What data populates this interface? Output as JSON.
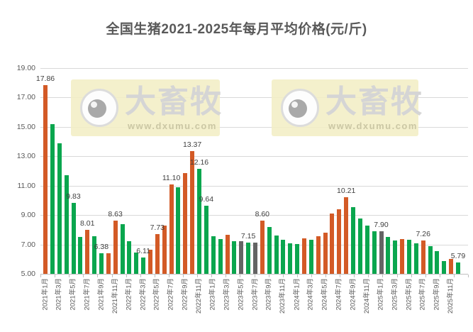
{
  "title": "全国生猪2021-2025年每月平均价格(元/斤)",
  "watermark": {
    "brand": "大畜牧",
    "url": "www.dxumu.com"
  },
  "colors": {
    "up": "#d35a26",
    "down": "#0aa64e",
    "flat": "#646464",
    "title_text": "#595959",
    "axis_text": "#595959",
    "gridline": "#d9d9d9",
    "axis_line": "#bfbfbf",
    "data_label_text": "#3f3f3f",
    "watermark_bg": "#f2eec5"
  },
  "chart_data": {
    "type": "bar",
    "title": "全国生猪2021-2025年每月平均价格(元/斤)",
    "xlabel": "",
    "ylabel": "",
    "unit": "元/斤",
    "ylim": [
      5,
      19
    ],
    "ytick_step": 2,
    "grid": true,
    "legend": false,
    "yticks": [
      "19.00",
      "17.00",
      "15.00",
      "13.00",
      "11.00",
      "9.00",
      "7.00",
      "5.00"
    ],
    "x_tick_labels": [
      "2021年1月",
      "2021年3月",
      "2021年5月",
      "2021年7月",
      "2021年9月",
      "2021年11月",
      "2022年1月",
      "2022年3月",
      "2022年5月",
      "2022年7月",
      "2022年9月",
      "2022年11月",
      "2023年1月",
      "2023年3月",
      "2023年5月",
      "2023年7月",
      "2023年9月",
      "2023年11月",
      "2024年1月",
      "2024年3月",
      "2024年5月",
      "2024年7月",
      "2024年9月",
      "2024年11月",
      "2025年1月",
      "2025年3月",
      "2025年5月",
      "2025年7月",
      "2025年9月",
      "2025年11月"
    ],
    "categories": [
      "2021年1月",
      "2021年2月",
      "2021年3月",
      "2021年4月",
      "2021年5月",
      "2021年6月",
      "2021年7月",
      "2021年8月",
      "2021年9月",
      "2021年10月",
      "2021年11月",
      "2021年12月",
      "2022年1月",
      "2022年2月",
      "2022年3月",
      "2022年4月",
      "2022年5月",
      "2022年6月",
      "2022年7月",
      "2022年8月",
      "2022年9月",
      "2022年10月",
      "2022年11月",
      "2022年12月",
      "2023年1月",
      "2023年2月",
      "2023年3月",
      "2023年4月",
      "2023年5月",
      "2023年6月",
      "2023年7月",
      "2023年8月",
      "2023年9月",
      "2023年10月",
      "2023年11月",
      "2023年12月",
      "2024年1月",
      "2024年2月",
      "2024年3月",
      "2024年4月",
      "2024年5月",
      "2024年6月",
      "2024年7月",
      "2024年8月",
      "2024年9月",
      "2024年10月",
      "2024年11月",
      "2024年12月",
      "2025年1月",
      "2025年2月",
      "2025年3月",
      "2025年4月",
      "2025年5月",
      "2025年6月",
      "2025年7月",
      "2025年8月",
      "2025年9月",
      "2025年10月",
      "2025年11月",
      "2025年12月"
    ],
    "values": [
      17.86,
      15.2,
      13.9,
      11.7,
      9.83,
      7.5,
      8.01,
      7.55,
      6.38,
      6.4,
      8.63,
      8.4,
      7.2,
      6.45,
      6.11,
      6.65,
      7.73,
      8.3,
      11.1,
      10.9,
      11.85,
      13.37,
      12.16,
      9.64,
      7.55,
      7.35,
      7.65,
      7.2,
      7.2,
      7.15,
      7.15,
      8.6,
      8.2,
      7.6,
      7.3,
      7.1,
      7.05,
      7.4,
      7.3,
      7.55,
      7.8,
      9.1,
      9.4,
      10.21,
      9.55,
      8.75,
      8.3,
      7.9,
      7.9,
      7.5,
      7.25,
      7.35,
      7.3,
      7.1,
      7.26,
      6.9,
      6.55,
      5.85,
      6.0,
      5.79
    ],
    "trends": [
      "up",
      "down",
      "down",
      "down",
      "down",
      "down",
      "up",
      "down",
      "down",
      "up",
      "up",
      "down",
      "down",
      "down",
      "down",
      "up",
      "up",
      "up",
      "up",
      "down",
      "up",
      "up",
      "down",
      "down",
      "down",
      "down",
      "up",
      "down",
      "flat",
      "down",
      "flat",
      "up",
      "down",
      "down",
      "down",
      "down",
      "down",
      "up",
      "down",
      "up",
      "up",
      "up",
      "up",
      "up",
      "down",
      "down",
      "down",
      "down",
      "flat",
      "down",
      "down",
      "up",
      "down",
      "down",
      "up",
      "down",
      "down",
      "down",
      "up",
      "down"
    ],
    "data_labels": {
      "0": "17.86",
      "4": "9.83",
      "6": "8.01",
      "8": "6.38",
      "10": "8.63",
      "14": "6.11",
      "16": "7.73",
      "18": "11.10",
      "21": "13.37",
      "22": "12.16",
      "23": "9.64",
      "29": "7.15",
      "31": "8.60",
      "43": "10.21",
      "48": "7.90",
      "54": "7.26",
      "59": "5.79"
    }
  }
}
